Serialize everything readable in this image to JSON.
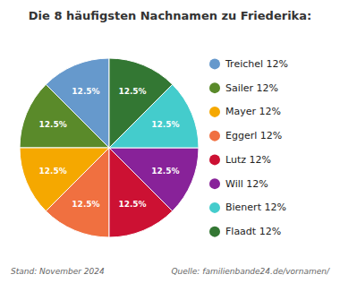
{
  "chart_data": {
    "type": "pie",
    "title": "Die 8 häufigsten Nachnamen zu Friederika:",
    "categories": [
      "Treichel 12%",
      "Sailer 12%",
      "Mayer 12%",
      "Eggerl 12%",
      "Lutz 12%",
      "Will 12%",
      "Bienert 12%",
      "Flaadt 12%"
    ],
    "values": [
      12.5,
      12.5,
      12.5,
      12.5,
      12.5,
      12.5,
      12.5,
      12.5
    ],
    "value_labels": [
      "12.5%",
      "12.5%",
      "12.5%",
      "12.5%",
      "12.5%",
      "12.5%",
      "12.5%",
      "12.5%"
    ],
    "colors": [
      "#6699CC",
      "#5A8A2A",
      "#F5A800",
      "#F07040",
      "#CC1133",
      "#882299",
      "#44CCCC",
      "#337733"
    ],
    "data_labels": true,
    "legend": "right",
    "annotations": [
      "Stand: November 2024",
      "Quelle: familienbande24.de/vornamen/"
    ]
  }
}
